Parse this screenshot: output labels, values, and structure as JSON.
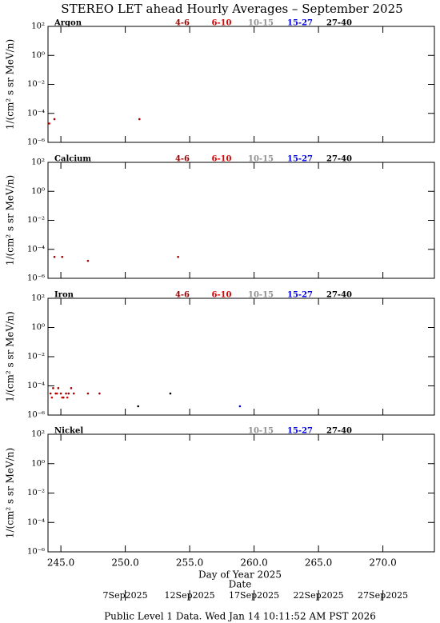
{
  "title": "STEREO LET ahead Hourly Averages – September 2025",
  "footer": "Public Level 1 Data. Wed Jan 14 10:11:52 AM PST 2026",
  "x_axis": {
    "label": "Day of Year 2025",
    "xlim": [
      244,
      274
    ],
    "xticks": [
      {
        "value": 245,
        "label": "245.0"
      },
      {
        "value": 250,
        "label": "250.0"
      },
      {
        "value": 255,
        "label": "255.0"
      },
      {
        "value": 260,
        "label": "260.0"
      },
      {
        "value": 265,
        "label": "265.0"
      },
      {
        "value": 270,
        "label": "270.0"
      }
    ],
    "date_label": "Date",
    "date_ticks": [
      {
        "value": 250,
        "label": "7Sep2025"
      },
      {
        "value": 255,
        "label": "12Sep2025"
      },
      {
        "value": 260,
        "label": "17Sep2025"
      },
      {
        "value": 265,
        "label": "22Sep2025"
      },
      {
        "value": 270,
        "label": "27Sep2025"
      }
    ]
  },
  "chart_data": [
    {
      "type": "scatter",
      "panel_label": "Argon",
      "ylabel": "1/(cm² s sr MeV/n)",
      "log_y": true,
      "ylim": [
        1e-06,
        100
      ],
      "yticks": [
        {
          "value": 100,
          "label": "10²"
        },
        {
          "value": 1,
          "label": "10⁰"
        },
        {
          "value": 0.01,
          "label": "10⁻²"
        },
        {
          "value": 0.0001,
          "label": "10⁻⁴"
        },
        {
          "value": 1e-06,
          "label": "10⁻⁶"
        }
      ],
      "series": [
        {
          "name": "4-6",
          "color": "#a00000",
          "x": [
            244.5,
            251.1
          ],
          "values": [
            4e-05,
            4e-05
          ]
        },
        {
          "name": "6-10",
          "color": "#e00000",
          "x": [
            244.1
          ],
          "values": [
            2e-05
          ]
        },
        {
          "name": "10-15",
          "color": "#909090",
          "x": [],
          "values": []
        },
        {
          "name": "15-27",
          "color": "#0000e0",
          "x": [],
          "values": []
        },
        {
          "name": "27-40",
          "color": "#000000",
          "x": [],
          "values": []
        }
      ]
    },
    {
      "type": "scatter",
      "panel_label": "Calcium",
      "ylabel": "1/(cm² s sr MeV/n)",
      "log_y": true,
      "ylim": [
        1e-06,
        100
      ],
      "yticks": [
        {
          "value": 100,
          "label": "10²"
        },
        {
          "value": 1,
          "label": "10⁰"
        },
        {
          "value": 0.01,
          "label": "10⁻²"
        },
        {
          "value": 0.0001,
          "label": "10⁻⁴"
        },
        {
          "value": 1e-06,
          "label": "10⁻⁶"
        }
      ],
      "series": [
        {
          "name": "4-6",
          "color": "#a00000",
          "x": [
            244.5,
            245.1,
            247.1,
            254.1
          ],
          "values": [
            3e-05,
            3e-05,
            1.6e-05,
            3e-05
          ]
        },
        {
          "name": "6-10",
          "color": "#e00000",
          "x": [],
          "values": []
        },
        {
          "name": "10-15",
          "color": "#909090",
          "x": [],
          "values": []
        },
        {
          "name": "15-27",
          "color": "#0000e0",
          "x": [],
          "values": []
        },
        {
          "name": "27-40",
          "color": "#000000",
          "x": [],
          "values": []
        }
      ]
    },
    {
      "type": "scatter",
      "panel_label": "Iron",
      "ylabel": "1/(cm² s sr MeV/n)",
      "log_y": true,
      "ylim": [
        1e-06,
        100
      ],
      "yticks": [
        {
          "value": 100,
          "label": "10²"
        },
        {
          "value": 1,
          "label": "10⁰"
        },
        {
          "value": 0.01,
          "label": "10⁻²"
        },
        {
          "value": 0.0001,
          "label": "10⁻⁴"
        },
        {
          "value": 1e-06,
          "label": "10⁻⁶"
        }
      ],
      "series": [
        {
          "name": "4-6",
          "color": "#a00000",
          "x": [
            244.2,
            244.4,
            244.6,
            244.8,
            245.0,
            245.2,
            245.4,
            245.6,
            245.8,
            246.0,
            247.1,
            248.0
          ],
          "values": [
            3e-05,
            7e-05,
            3e-05,
            7e-05,
            3e-05,
            1.6e-05,
            3e-05,
            3e-05,
            7e-05,
            3e-05,
            3e-05,
            3e-05
          ]
        },
        {
          "name": "6-10",
          "color": "#e00000",
          "x": [
            244.3,
            244.7,
            245.1,
            245.5
          ],
          "values": [
            1.6e-05,
            3e-05,
            1.6e-05,
            1.6e-05
          ]
        },
        {
          "name": "10-15",
          "color": "#909090",
          "x": [],
          "values": []
        },
        {
          "name": "15-27",
          "color": "#0000e0",
          "x": [
            258.9
          ],
          "values": [
            4e-06
          ]
        },
        {
          "name": "27-40",
          "color": "#000000",
          "x": [
            251.0,
            253.5
          ],
          "values": [
            4e-06,
            3e-05
          ]
        }
      ]
    },
    {
      "type": "scatter",
      "panel_label": "Nickel",
      "ylabel": "1/(cm² s sr MeV/n)",
      "log_y": true,
      "ylim": [
        1e-06,
        100
      ],
      "yticks": [
        {
          "value": 100,
          "label": "10²"
        },
        {
          "value": 1,
          "label": "10⁰"
        },
        {
          "value": 0.01,
          "label": "10⁻²"
        },
        {
          "value": 0.0001,
          "label": "10⁻⁴"
        },
        {
          "value": 1e-06,
          "label": "10⁻⁶"
        }
      ],
      "series": [
        {
          "name": "10-15",
          "color": "#909090",
          "x": [],
          "values": []
        },
        {
          "name": "15-27",
          "color": "#0000e0",
          "x": [],
          "values": []
        },
        {
          "name": "27-40",
          "color": "#000000",
          "x": [],
          "values": []
        }
      ]
    }
  ]
}
